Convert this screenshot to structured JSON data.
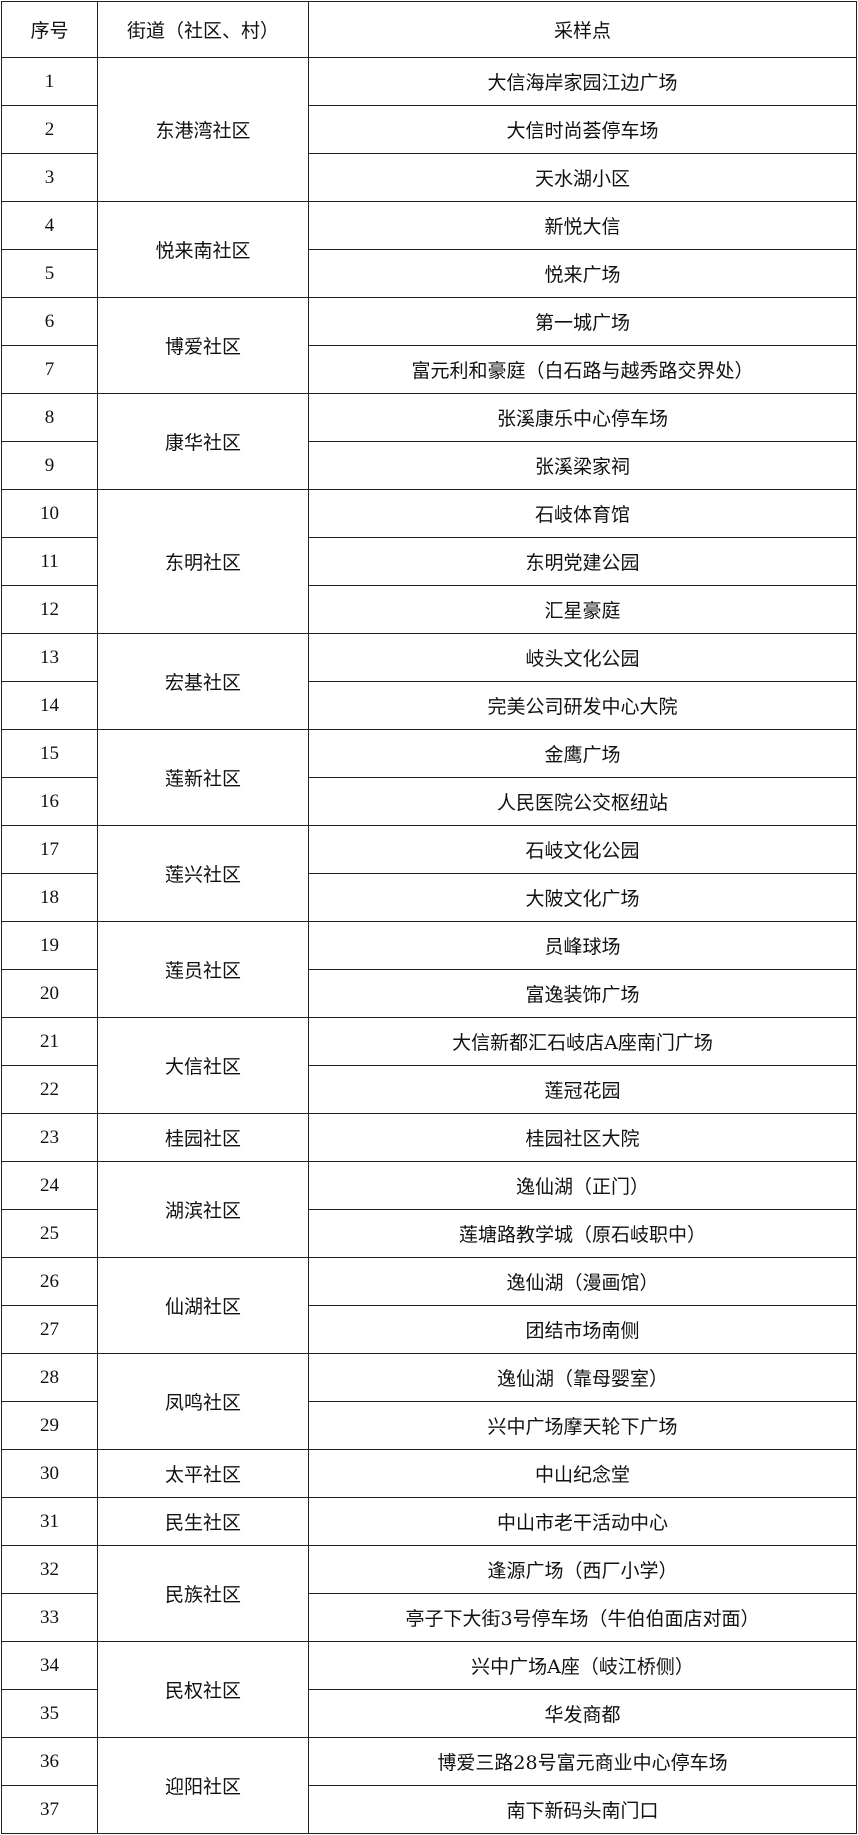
{
  "table": {
    "headers": [
      "序号",
      "街道（社区、村）",
      "采样点"
    ],
    "groups": [
      {
        "street": "东港湾社区",
        "rows": [
          [
            "1",
            "大信海岸家园江边广场"
          ],
          [
            "2",
            "大信时尚荟停车场"
          ],
          [
            "3",
            "天水湖小区"
          ]
        ]
      },
      {
        "street": "悦来南社区",
        "rows": [
          [
            "4",
            "新悦大信"
          ],
          [
            "5",
            "悦来广场"
          ]
        ]
      },
      {
        "street": "博爱社区",
        "rows": [
          [
            "6",
            "第一城广场"
          ],
          [
            "7",
            "富元利和豪庭（白石路与越秀路交界处）"
          ]
        ]
      },
      {
        "street": "康华社区",
        "rows": [
          [
            "8",
            "张溪康乐中心停车场"
          ],
          [
            "9",
            "张溪梁家祠"
          ]
        ]
      },
      {
        "street": "东明社区",
        "rows": [
          [
            "10",
            "石岐体育馆"
          ],
          [
            "11",
            "东明党建公园"
          ],
          [
            "12",
            "汇星豪庭"
          ]
        ]
      },
      {
        "street": "宏基社区",
        "rows": [
          [
            "13",
            "岐头文化公园"
          ],
          [
            "14",
            "完美公司研发中心大院"
          ]
        ]
      },
      {
        "street": "莲新社区",
        "rows": [
          [
            "15",
            "金鹰广场"
          ],
          [
            "16",
            "人民医院公交枢纽站"
          ]
        ]
      },
      {
        "street": "莲兴社区",
        "rows": [
          [
            "17",
            "石岐文化公园"
          ],
          [
            "18",
            "大陂文化广场"
          ]
        ]
      },
      {
        "street": "莲员社区",
        "rows": [
          [
            "19",
            "员峰球场"
          ],
          [
            "20",
            "富逸装饰广场"
          ]
        ]
      },
      {
        "street": "大信社区",
        "rows": [
          [
            "21",
            "大信新都汇石岐店A座南门广场"
          ],
          [
            "22",
            "莲冠花园"
          ]
        ]
      },
      {
        "street": "桂园社区",
        "rows": [
          [
            "23",
            "桂园社区大院"
          ]
        ]
      },
      {
        "street": "湖滨社区",
        "rows": [
          [
            "24",
            "逸仙湖（正门）"
          ],
          [
            "25",
            "莲塘路教学城（原石岐职中）"
          ]
        ]
      },
      {
        "street": "仙湖社区",
        "rows": [
          [
            "26",
            "逸仙湖（漫画馆）"
          ],
          [
            "27",
            "团结市场南侧"
          ]
        ]
      },
      {
        "street": "凤鸣社区",
        "rows": [
          [
            "28",
            "逸仙湖（靠母婴室）"
          ],
          [
            "29",
            "兴中广场摩天轮下广场"
          ]
        ]
      },
      {
        "street": "太平社区",
        "rows": [
          [
            "30",
            "中山纪念堂"
          ]
        ]
      },
      {
        "street": "民生社区",
        "rows": [
          [
            "31",
            "中山市老干活动中心"
          ]
        ]
      },
      {
        "street": "民族社区",
        "rows": [
          [
            "32",
            "逢源广场（西厂小学）"
          ],
          [
            "33",
            "亭子下大街3号停车场（牛伯伯面店对面）"
          ]
        ]
      },
      {
        "street": "民权社区",
        "rows": [
          [
            "34",
            "兴中广场A座（岐江桥侧）"
          ],
          [
            "35",
            "华发商都"
          ]
        ]
      },
      {
        "street": "迎阳社区",
        "rows": [
          [
            "36",
            "博爱三路28号富元商业中心停车场"
          ],
          [
            "37",
            "南下新码头南门口"
          ]
        ]
      }
    ]
  }
}
